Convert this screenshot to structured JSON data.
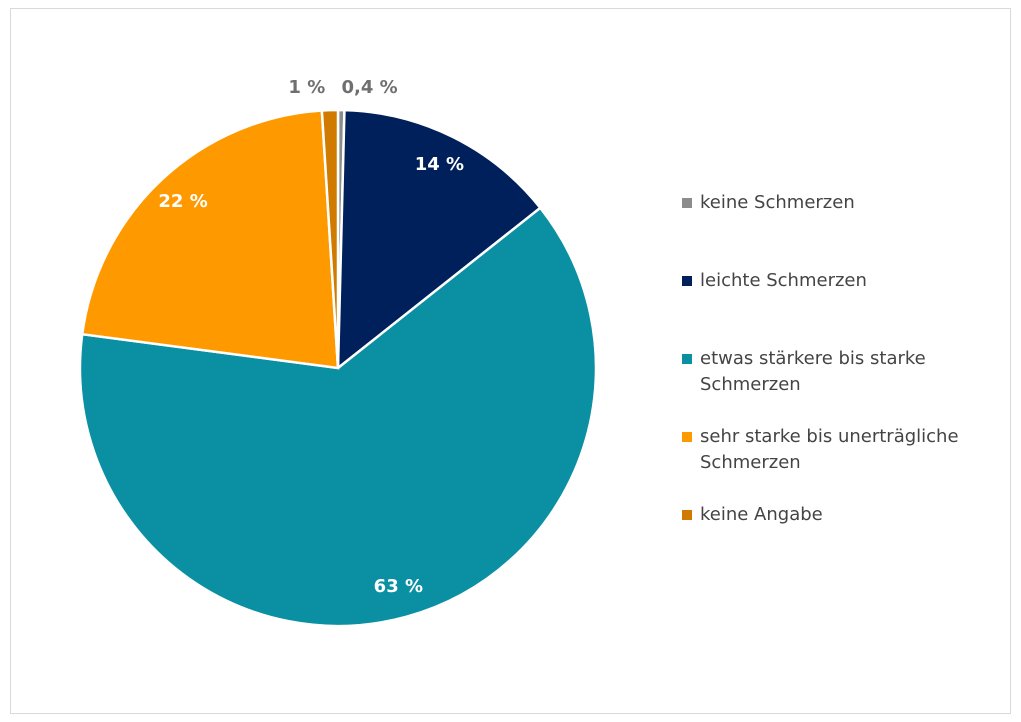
{
  "chart_data": {
    "type": "pie",
    "categories": [
      "keine Schmerzen",
      "leichte Schmerzen",
      "etwas stärkere bis starke Schmerzen",
      "sehr starke bis unerträgliche Schmerzen",
      "keine Angabe"
    ],
    "values": [
      0.4,
      14,
      63,
      22,
      1
    ],
    "value_labels": [
      "0,4 %",
      "14 %",
      "63 %",
      "22 %",
      "1 %"
    ],
    "colors": [
      "#8c8c8c",
      "#00205b",
      "#0a8fa3",
      "#ff9900",
      "#d07a00"
    ],
    "legend": "right"
  }
}
